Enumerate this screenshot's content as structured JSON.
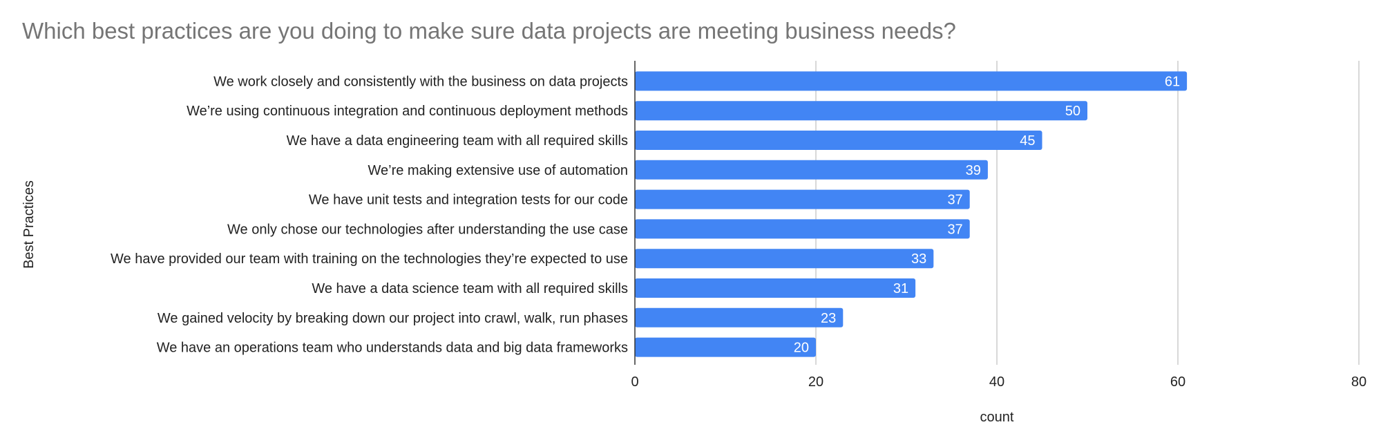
{
  "chart_data": {
    "type": "bar",
    "orientation": "horizontal",
    "title": "Which best practices are you doing to make sure data projects are meeting business needs?",
    "xlabel": "count",
    "ylabel": "Best Practices",
    "categories": [
      "We work closely and consistently with the business on data projects",
      "We’re using continuous integration and continuous deployment methods",
      "We have a data engineering team with all required skills",
      "We’re making extensive use of automation",
      "We have unit tests and integration tests for our code",
      "We only chose our technologies after understanding the use case",
      "We have provided our team with training on the technologies they’re expected to use",
      "We have a data science team with all required skills",
      "We gained velocity by breaking down our project into crawl, walk, run phases",
      "We have an operations team who understands data and big data frameworks"
    ],
    "values": [
      61,
      50,
      45,
      39,
      37,
      37,
      33,
      31,
      23,
      20
    ],
    "xlim": [
      0,
      80
    ],
    "xticks": [
      0,
      20,
      40,
      60,
      80
    ],
    "grid": "vertical",
    "legend": "none",
    "data_labels": "inside-end",
    "colors": {
      "bar": "#4285f4",
      "grid": "#cccccc",
      "axis": "#333333",
      "title": "#757575",
      "value_label": "#ffffff"
    }
  }
}
